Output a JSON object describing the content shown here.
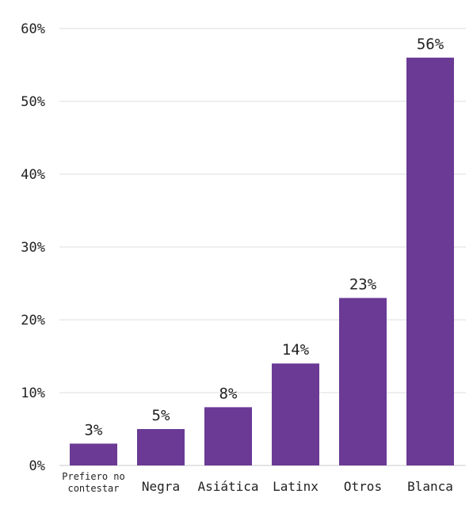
{
  "chart_data": {
    "type": "bar",
    "title": "",
    "xlabel": "",
    "ylabel": "",
    "categories": [
      [
        "Prefiero no",
        "contestar"
      ],
      [
        "Negra"
      ],
      [
        "Asiática"
      ],
      [
        "Latinx"
      ],
      [
        "Otros"
      ],
      [
        "Blanca"
      ]
    ],
    "values": [
      3,
      5,
      8,
      14,
      23,
      56
    ],
    "data_labels": [
      "3%",
      "5%",
      "8%",
      "14%",
      "23%",
      "56%"
    ],
    "y_ticks": [
      0,
      10,
      20,
      30,
      40,
      50,
      60
    ],
    "y_tick_labels": [
      "0%",
      "10%",
      "20%",
      "30%",
      "40%",
      "50%",
      "60%"
    ],
    "ylim": [
      0,
      60
    ],
    "grid": true,
    "legend": "none",
    "bar_color": "#6a3a95"
  }
}
